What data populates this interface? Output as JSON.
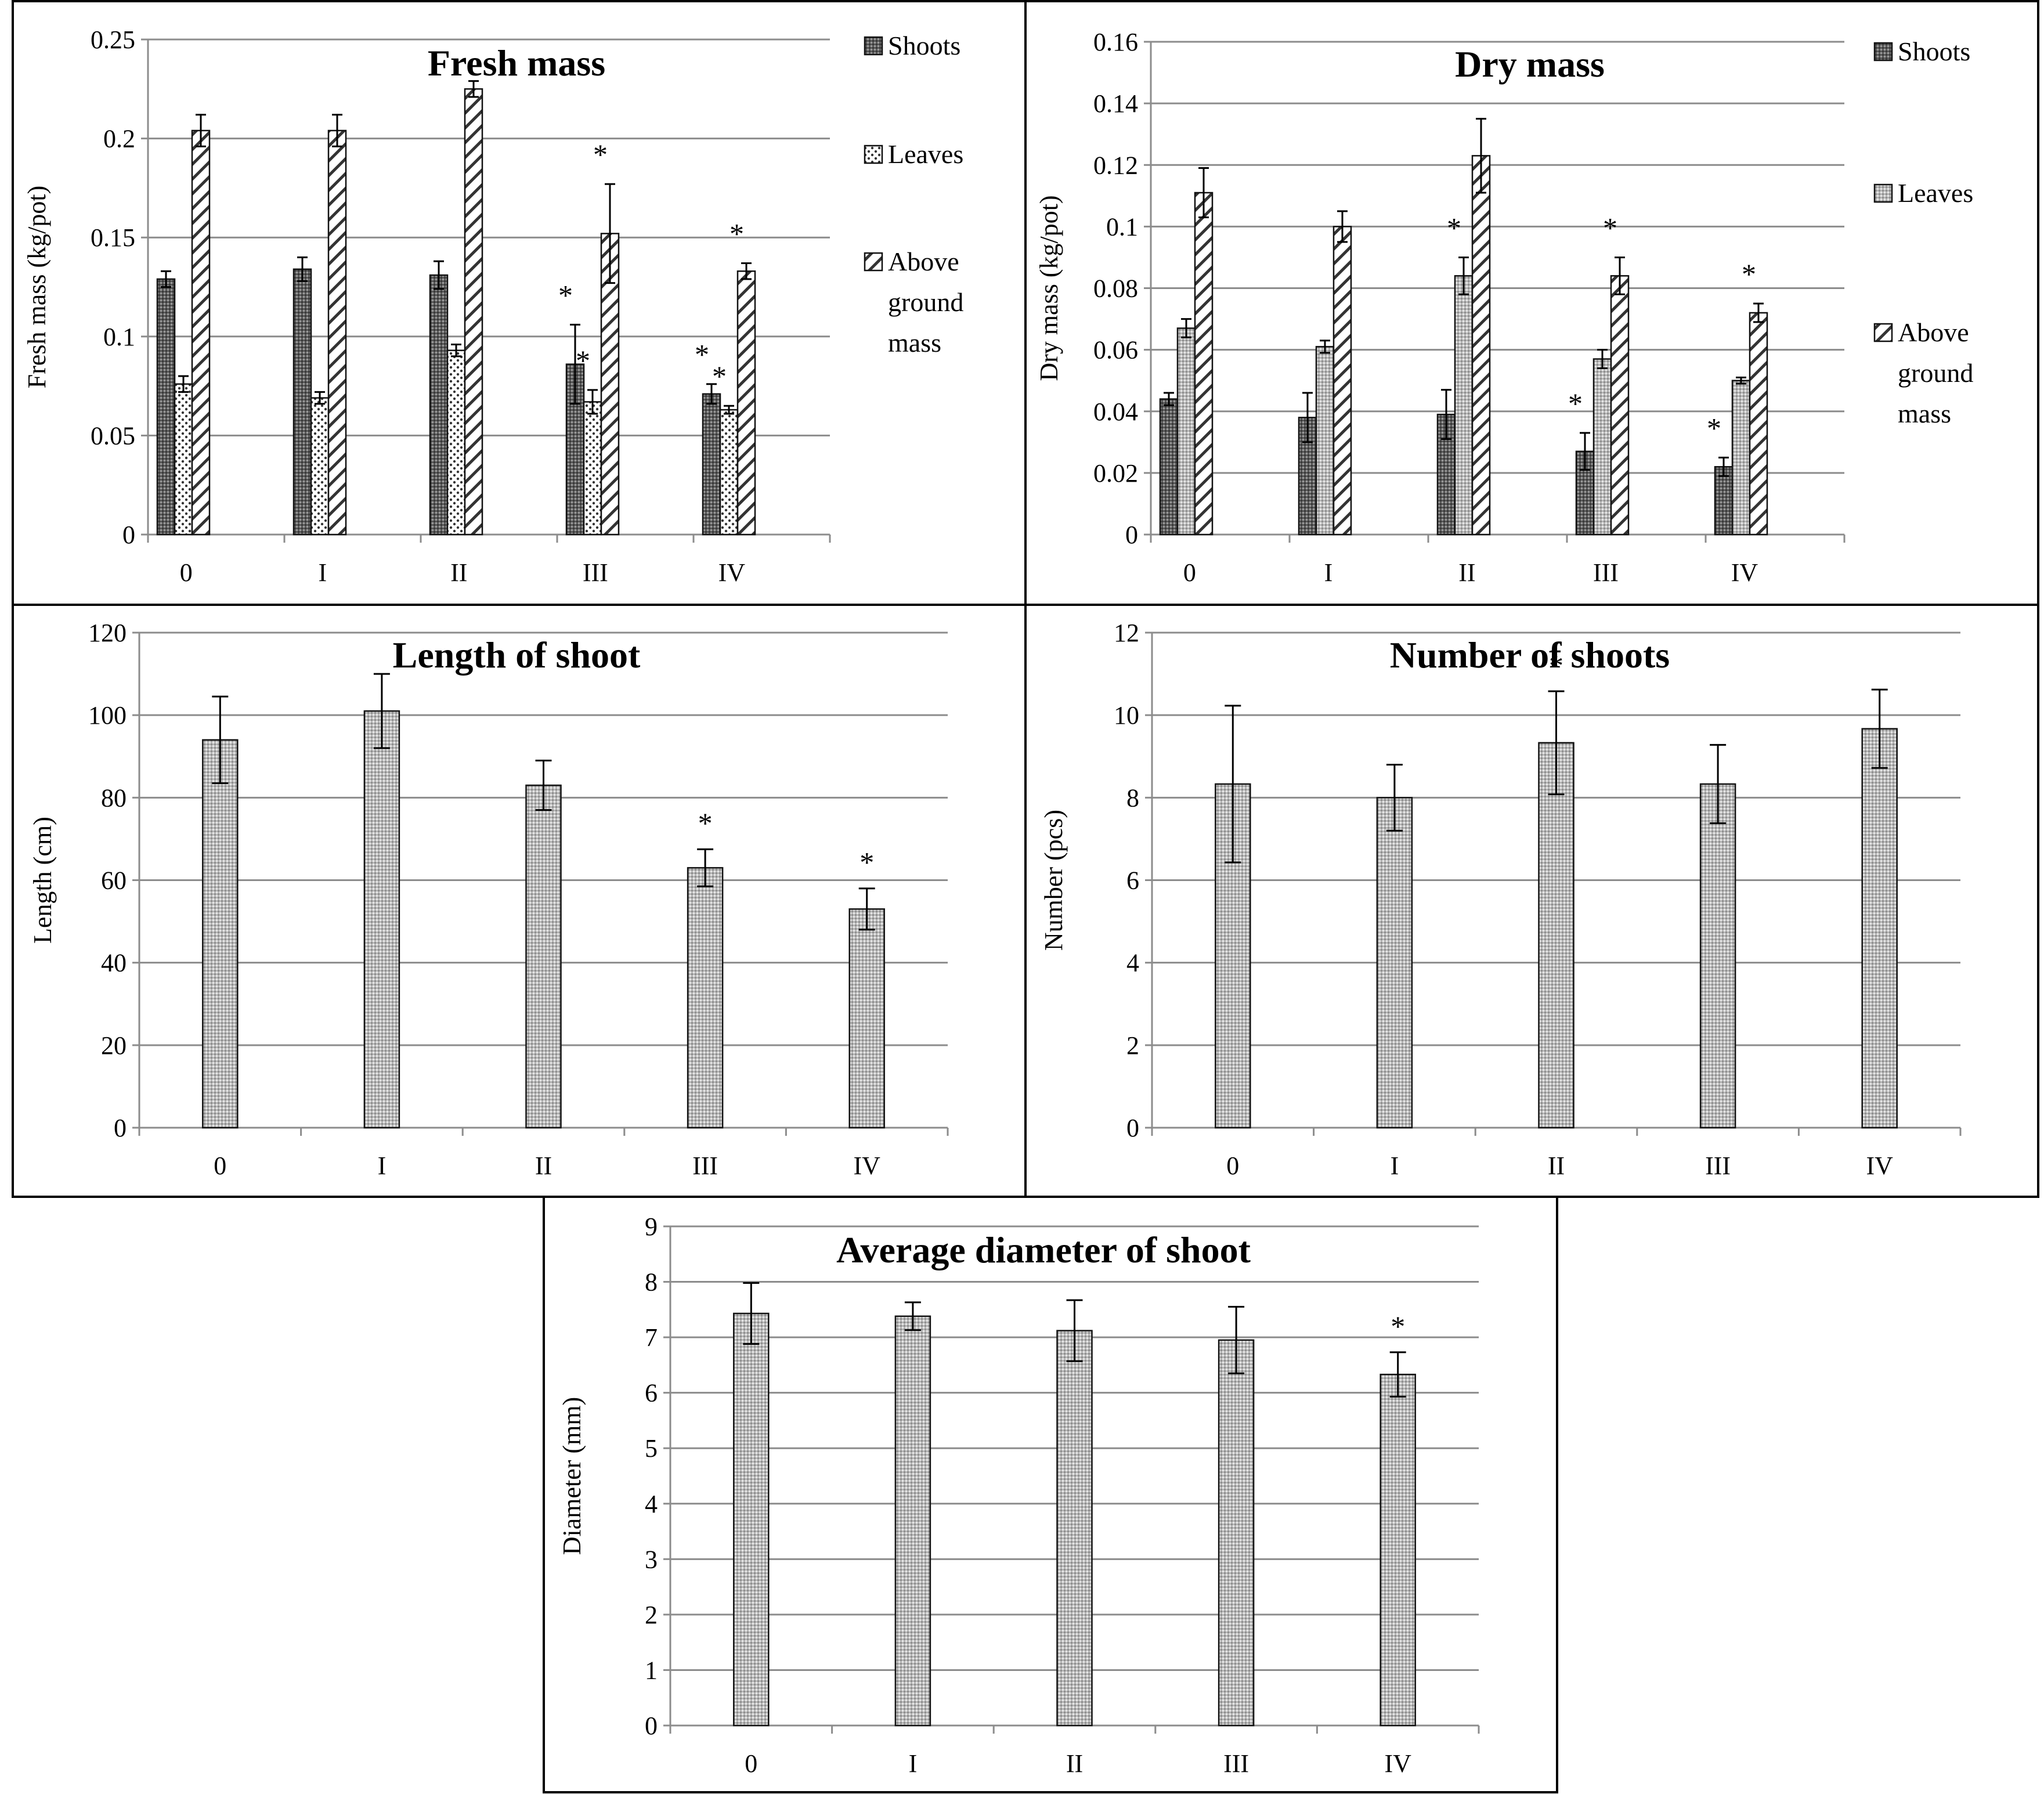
{
  "chart_data": [
    {
      "id": "fresh-mass",
      "type": "bar",
      "title": "Fresh mass",
      "xlabel": "",
      "ylabel": "Fresh mass (kg/pot)",
      "categories": [
        "0",
        "I",
        "II",
        "III",
        "IV"
      ],
      "ylim": [
        0,
        0.25
      ],
      "yticks": [
        0,
        0.05,
        0.1,
        0.15,
        0.2,
        0.25
      ],
      "ytick_labels": [
        "0",
        "0.05",
        "0.1",
        "0.15",
        "0.2",
        "0.25"
      ],
      "grid": true,
      "legend_position": "right",
      "legend_lines": [
        [
          "Shoots"
        ],
        [
          "Leaves"
        ],
        [
          "Above",
          "ground",
          "mass"
        ]
      ],
      "series": [
        {
          "name": "Shoots",
          "pattern": "dark",
          "values": [
            0.129,
            0.134,
            0.131,
            0.086,
            0.071
          ],
          "errors": [
            0.004,
            0.006,
            0.007,
            0.02,
            0.005
          ],
          "stars": [
            false,
            false,
            false,
            true,
            true
          ]
        },
        {
          "name": "Leaves",
          "pattern": "dots",
          "values": [
            0.076,
            0.069,
            0.093,
            0.067,
            0.063
          ],
          "errors": [
            0.004,
            0.003,
            0.003,
            0.006,
            0.002
          ],
          "stars": [
            false,
            false,
            false,
            true,
            true
          ]
        },
        {
          "name": "Above ground mass",
          "pattern": "hatch",
          "values": [
            0.204,
            0.204,
            0.225,
            0.152,
            0.133
          ],
          "errors": [
            0.008,
            0.008,
            0.004,
            0.025,
            0.004
          ],
          "stars": [
            false,
            false,
            false,
            true,
            true
          ]
        }
      ]
    },
    {
      "id": "dry-mass",
      "type": "bar",
      "title": "Dry mass",
      "xlabel": "",
      "ylabel": "Dry mass (kg/pot)",
      "categories": [
        "0",
        "I",
        "II",
        "III",
        "IV"
      ],
      "ylim": [
        0,
        0.16
      ],
      "yticks": [
        0,
        0.02,
        0.04,
        0.06,
        0.08,
        0.1,
        0.12,
        0.14,
        0.16
      ],
      "ytick_labels": [
        "0",
        "0.02",
        "0.04",
        "0.06",
        "0.08",
        "0.1",
        "0.12",
        "0.14",
        "0.16"
      ],
      "grid": true,
      "legend_position": "right",
      "legend_lines": [
        [
          "Shoots"
        ],
        [
          "Leaves"
        ],
        [
          "Above",
          "ground",
          "mass"
        ]
      ],
      "series": [
        {
          "name": "Shoots",
          "pattern": "dark",
          "values": [
            0.044,
            0.038,
            0.039,
            0.027,
            0.022
          ],
          "errors": [
            0.002,
            0.008,
            0.008,
            0.006,
            0.003
          ],
          "stars": [
            false,
            false,
            false,
            true,
            true
          ]
        },
        {
          "name": "Leaves",
          "pattern": "light",
          "values": [
            0.067,
            0.061,
            0.084,
            0.057,
            0.05
          ],
          "errors": [
            0.003,
            0.002,
            0.006,
            0.003,
            0.001
          ],
          "stars": [
            false,
            false,
            true,
            false,
            false
          ]
        },
        {
          "name": "Above ground mass",
          "pattern": "hatch",
          "values": [
            0.111,
            0.1,
            0.123,
            0.084,
            0.072
          ],
          "errors": [
            0.008,
            0.005,
            0.012,
            0.006,
            0.003
          ],
          "stars": [
            false,
            false,
            false,
            true,
            true
          ]
        }
      ]
    },
    {
      "id": "length-of-shoot",
      "type": "bar",
      "title": "Length of shoot",
      "xlabel": "",
      "ylabel": "Length (cm)",
      "categories": [
        "0",
        "I",
        "II",
        "III",
        "IV"
      ],
      "ylim": [
        0,
        120
      ],
      "yticks": [
        0,
        20,
        40,
        60,
        80,
        100,
        120
      ],
      "ytick_labels": [
        "0",
        "20",
        "40",
        "60",
        "80",
        "100",
        "120"
      ],
      "grid": true,
      "series": [
        {
          "name": "Length",
          "pattern": "light",
          "values": [
            94,
            101,
            83,
            63,
            53
          ],
          "errors": [
            10.5,
            9,
            6,
            4.5,
            5
          ],
          "stars": [
            false,
            false,
            false,
            true,
            true
          ]
        }
      ]
    },
    {
      "id": "number-of-shoots",
      "type": "bar",
      "title": "Number of shoots",
      "xlabel": "",
      "ylabel": "Number (pcs)",
      "categories": [
        "0",
        "I",
        "II",
        "III",
        "IV"
      ],
      "ylim": [
        0,
        12
      ],
      "yticks": [
        0,
        2,
        4,
        6,
        8,
        10,
        12
      ],
      "ytick_labels": [
        "0",
        "2",
        "4",
        "6",
        "8",
        "10",
        "12"
      ],
      "grid": true,
      "series": [
        {
          "name": "Number",
          "pattern": "light",
          "values": [
            8.33,
            8,
            9.33,
            8.33,
            9.67
          ],
          "errors": [
            1.9,
            0.8,
            1.25,
            0.95,
            0.95
          ],
          "stars": [
            false,
            false,
            true,
            false,
            false
          ]
        }
      ]
    },
    {
      "id": "average-diameter-of-shoot",
      "type": "bar",
      "title": "Average diameter of shoot",
      "xlabel": "",
      "ylabel": "Diameter (mm)",
      "categories": [
        "0",
        "I",
        "II",
        "III",
        "IV"
      ],
      "ylim": [
        0,
        9
      ],
      "yticks": [
        0,
        1,
        2,
        3,
        4,
        5,
        6,
        7,
        8,
        9
      ],
      "ytick_labels": [
        "0",
        "1",
        "2",
        "3",
        "4",
        "5",
        "6",
        "7",
        "8",
        "9"
      ],
      "grid": true,
      "series": [
        {
          "name": "Diameter",
          "pattern": "light",
          "values": [
            7.43,
            7.38,
            7.12,
            6.95,
            6.33
          ],
          "errors": [
            0.55,
            0.25,
            0.55,
            0.6,
            0.4
          ],
          "stars": [
            false,
            false,
            false,
            false,
            true
          ]
        }
      ]
    }
  ],
  "significance_marker": "*"
}
